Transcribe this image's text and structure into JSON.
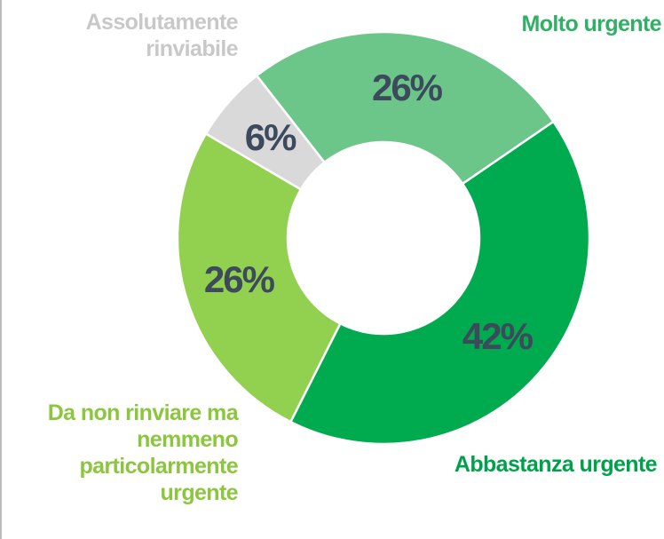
{
  "chart_data": {
    "type": "donut",
    "categories": [
      "Molto urgente",
      "Abbastanza urgente",
      "Da non rinviare ma nemmeno particolarmente urgente",
      "Assolutamente rinviabile"
    ],
    "values": [
      26,
      42,
      26,
      6
    ],
    "value_labels": [
      "26%",
      "42%",
      "26%",
      "6%"
    ],
    "colors": [
      "#6cc68a",
      "#00aa4f",
      "#92d050",
      "#d9d9d9"
    ],
    "label_colors": [
      "#2fb065",
      "#00a14b",
      "#8cc63f",
      "#c8c8c8"
    ]
  }
}
